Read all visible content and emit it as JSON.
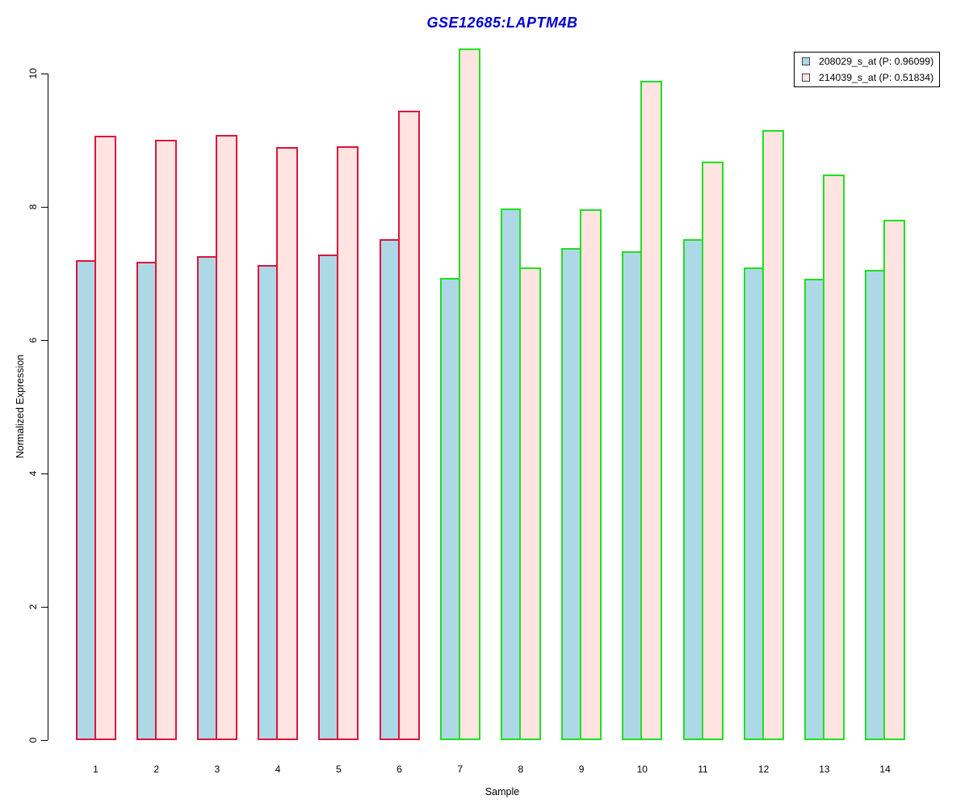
{
  "title": "GSE12685:LAPTM4B",
  "title_color": "#0000CD",
  "legend": {
    "position": "top-right",
    "entries": [
      {
        "label": "208029_s_at (P: 0.96099)",
        "swatch_color": "#ADD8E6"
      },
      {
        "label": "214039_s_at (P: 0.51834)",
        "swatch_color": "#FFE4E1"
      }
    ]
  },
  "chart_data": {
    "type": "bar",
    "title": "GSE12685:LAPTM4B",
    "xlabel": "Sample",
    "ylabel": "Normalized Expression",
    "ylim": [
      0,
      10
    ],
    "yticks": [
      0,
      2,
      4,
      6,
      8,
      10
    ],
    "grid": false,
    "legend_position": "top-right",
    "categories": [
      "1",
      "2",
      "3",
      "4",
      "5",
      "6",
      "7",
      "8",
      "9",
      "10",
      "11",
      "12",
      "13",
      "14"
    ],
    "series": [
      {
        "name": "208029_s_at (P: 0.96099)",
        "fill": "#ADD8E6",
        "values": [
          7.2,
          7.17,
          7.26,
          7.13,
          7.29,
          7.51,
          6.93,
          7.97,
          7.38,
          7.33,
          7.52,
          7.09,
          6.92,
          7.06
        ]
      },
      {
        "name": "214039_s_at (P: 0.51834)",
        "fill": "#FFE4E1",
        "values": [
          9.07,
          9.0,
          9.08,
          8.9,
          8.91,
          9.44,
          10.38,
          7.09,
          7.96,
          9.89,
          8.68,
          9.15,
          8.48,
          7.8
        ]
      }
    ],
    "sample_groups": [
      {
        "samples": "1-6",
        "border_color": "#DC143C"
      },
      {
        "samples": "7-14",
        "border_color": "#1FE11F"
      }
    ],
    "bar_border_colors": [
      "#DC143C",
      "#DC143C",
      "#DC143C",
      "#DC143C",
      "#DC143C",
      "#DC143C",
      "#1FE11F",
      "#1FE11F",
      "#1FE11F",
      "#1FE11F",
      "#1FE11F",
      "#1FE11F",
      "#1FE11F",
      "#1FE11F"
    ]
  }
}
